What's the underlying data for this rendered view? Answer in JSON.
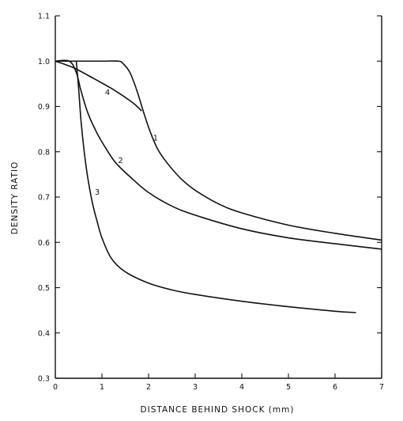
{
  "chart_data": {
    "type": "line",
    "title": "",
    "xlabel": "DISTANCE BEHIND SHOCK (mm)",
    "ylabel": "DENSITY RATIO",
    "xlim": [
      0,
      7
    ],
    "ylim": [
      0.3,
      1.1
    ],
    "x_ticks": [
      0,
      1,
      2,
      3,
      4,
      5,
      6,
      7
    ],
    "x_tick_labels": [
      "0",
      "1",
      "2",
      "3",
      "4",
      "5",
      "6",
      "7"
    ],
    "y_ticks": [
      0.3,
      0.4,
      0.5,
      0.6,
      0.7,
      0.8,
      0.9,
      1.0,
      1.1
    ],
    "y_tick_labels": [
      "0.3",
      "0.4",
      "0.5",
      "0.6",
      "0.7",
      "0.8",
      "0.9",
      "1.0",
      "1.1"
    ],
    "grid": false,
    "series": [
      {
        "name": "1",
        "label_at": [
          2.15,
          0.825
        ],
        "x": [
          0,
          0.5,
          1.0,
          1.35,
          1.45,
          1.6,
          1.75,
          1.9,
          2.05,
          2.2,
          2.4,
          2.7,
          3.0,
          3.5,
          4.0,
          5.0,
          6.0,
          7.0
        ],
        "y": [
          1.0,
          1.0,
          1.0,
          1.0,
          0.995,
          0.975,
          0.935,
          0.885,
          0.84,
          0.805,
          0.775,
          0.74,
          0.715,
          0.685,
          0.665,
          0.638,
          0.62,
          0.605
        ]
      },
      {
        "name": "2",
        "label_at": [
          1.4,
          0.775
        ],
        "x": [
          0,
          0.3,
          0.45,
          0.55,
          0.7,
          0.9,
          1.1,
          1.3,
          1.6,
          2.0,
          2.5,
          3.0,
          4.0,
          5.0,
          6.0,
          7.0
        ],
        "y": [
          1.0,
          1.0,
          0.975,
          0.935,
          0.885,
          0.84,
          0.805,
          0.775,
          0.745,
          0.71,
          0.68,
          0.66,
          0.63,
          0.61,
          0.597,
          0.585
        ]
      },
      {
        "name": "3",
        "label_at": [
          0.9,
          0.705
        ],
        "x": [
          0.45,
          0.5,
          0.55,
          0.62,
          0.7,
          0.8,
          0.9,
          1.0,
          1.2,
          1.5,
          2.0,
          2.5,
          3.0,
          4.0,
          5.0,
          6.0,
          6.45
        ],
        "y": [
          1.0,
          0.94,
          0.87,
          0.8,
          0.74,
          0.685,
          0.645,
          0.61,
          0.565,
          0.535,
          0.51,
          0.495,
          0.485,
          0.47,
          0.458,
          0.448,
          0.445
        ]
      },
      {
        "name": "4",
        "label_at": [
          1.12,
          0.925
        ],
        "x": [
          0,
          0.4,
          0.8,
          1.2,
          1.5,
          1.7,
          1.85
        ],
        "y": [
          1.0,
          0.985,
          0.963,
          0.94,
          0.92,
          0.905,
          0.89
        ]
      }
    ]
  }
}
